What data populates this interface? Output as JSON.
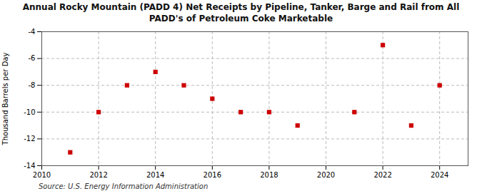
{
  "chart_data": {
    "type": "scatter",
    "title": "Annual Rocky Mountain (PADD 4) Net Receipts by Pipeline, Tanker, Barge and Rail from All\nPADD's of Petroleum Coke Marketable",
    "ylabel": "Thousand Barrels per Day",
    "source": "Source: U.S. Energy Information Administration",
    "x": [
      2011,
      2012,
      2013,
      2014,
      2015,
      2016,
      2017,
      2018,
      2019,
      2021,
      2022,
      2023,
      2024
    ],
    "values": [
      -13.0,
      -10.0,
      -8.0,
      -7.0,
      -8.0,
      -9.0,
      -10.0,
      -10.0,
      -11.0,
      -10.0,
      -5.0,
      -11.0,
      -8.0
    ],
    "color": "#cc0000",
    "marker": "square",
    "xlim": [
      2010,
      2025
    ],
    "ylim": [
      -14,
      -4
    ],
    "xticks": [
      2010,
      2012,
      2014,
      2016,
      2018,
      2020,
      2022,
      2024
    ],
    "yticks": [
      -14,
      -12,
      -10,
      -8,
      -6,
      -4
    ],
    "grid": true
  }
}
